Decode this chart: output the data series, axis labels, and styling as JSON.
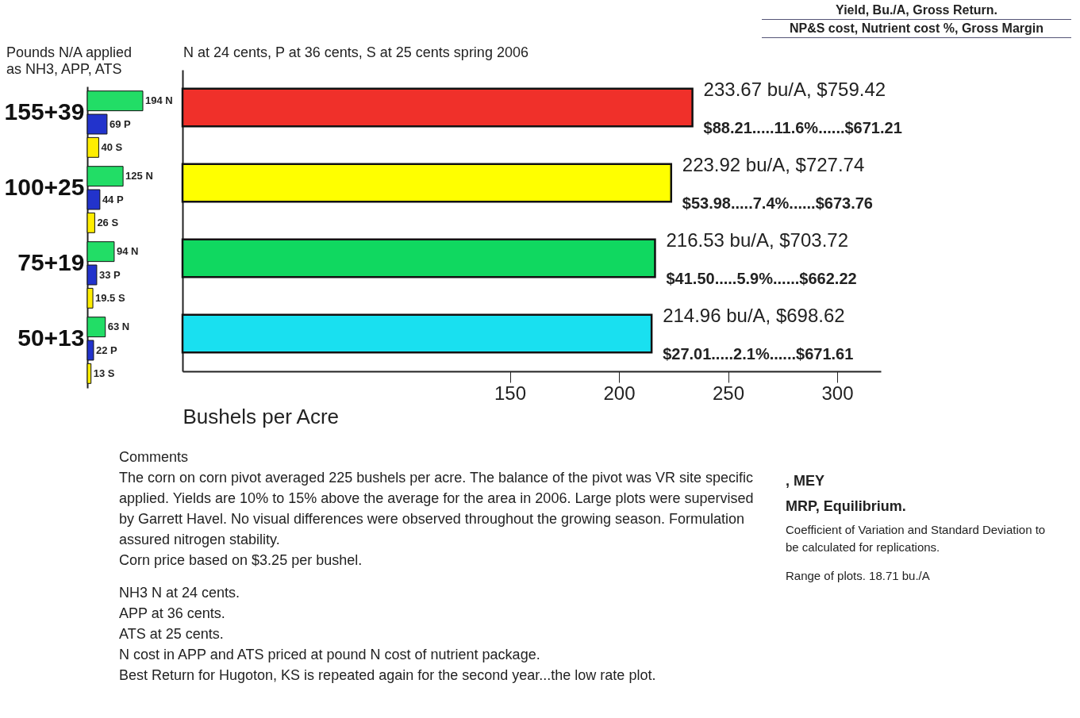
{
  "chart_data": [
    {
      "type": "bar",
      "orientation": "horizontal",
      "title": "Pounds N/A applied as NH3, APP, ATS",
      "categories": [
        "155+39",
        "100+25",
        "75+19",
        "50+13"
      ],
      "tick_labels": "y",
      "series": [
        {
          "color": "#22dd66",
          "values": [
            194,
            125,
            94,
            63
          ],
          "value_labels": [
            "194 N",
            "125 N",
            "94 N",
            "63 N"
          ]
        },
        {
          "color": "#2233cc",
          "values": [
            69,
            44,
            33,
            22
          ],
          "value_labels": [
            "69 P",
            "44 P",
            "33 P",
            "22 P"
          ]
        },
        {
          "color": "#ffee00",
          "values": [
            40,
            26,
            19.5,
            13
          ],
          "value_labels": [
            "40 S",
            "26 S",
            "19.5 S",
            "13 S"
          ]
        }
      ]
    },
    {
      "type": "bar",
      "orientation": "horizontal",
      "title": "N at 24 cents, P at 36 cents, S at 25 cents spring 2006",
      "xlabel": "Bushels per Acre",
      "categories": [
        "155+39",
        "100+25",
        "75+19",
        "50+13"
      ],
      "tick_labels": "x",
      "values": [
        233.67,
        223.92,
        216.53,
        214.96
      ],
      "colors": [
        "#f0302a",
        "#ffff00",
        "#10d860",
        "#19e0f0"
      ],
      "value_labels": [
        "233.67 bu/A, $759.42",
        "223.92 bu/A, $727.74",
        "216.53 bu/A, $703.72",
        "214.96 bu/A, $698.62"
      ],
      "xlim": [
        0,
        320
      ],
      "xticks": [
        150,
        200,
        250,
        300
      ],
      "annotations": [
        "Yield, Bu./A, Gross Return.",
        "NP&S cost, Nutrient cost %, Gross Margin",
        ", MEY",
        "MRP, Equilibrium.",
        {
          "text": "$88.21.....11.6%......$671.21",
          "x": 233.67,
          "y": "155+39"
        },
        {
          "text": "$53.98.....7.4%......$673.76",
          "x": 223.92,
          "y": "100+25"
        },
        {
          "text": "$41.50.....5.9%......$662.22",
          "x": 216.53,
          "y": "75+19"
        },
        {
          "text": "$27.01.....2.1%......$671.61",
          "x": 214.96,
          "y": "50+13"
        },
        "Comments",
        "The corn on corn pivot averaged 225 bushels per acre. The balance of the pivot was VR site specific applied. Yields are 10% to 15% above the average for the area in 2006. Large plots were supervised by Garrett Havel. No visual differences were observed throughout the growing season. Formulation assured nitrogen stability.",
        "Corn price based on $3.25 per bushel.",
        "NH3 N at 24 cents.",
        "APP at 36 cents.",
        "ATS at 25 cents.",
        "N cost in APP and ATS priced at pound N cost of nutrient package.",
        "Best Return for Hugoton, KS is repeated again for the second year...the low rate plot.",
        "Coefficient of Variation and Standard Deviation to be calculated for replications.",
        "Range of plots. 18.71 bu./A"
      ]
    }
  ]
}
